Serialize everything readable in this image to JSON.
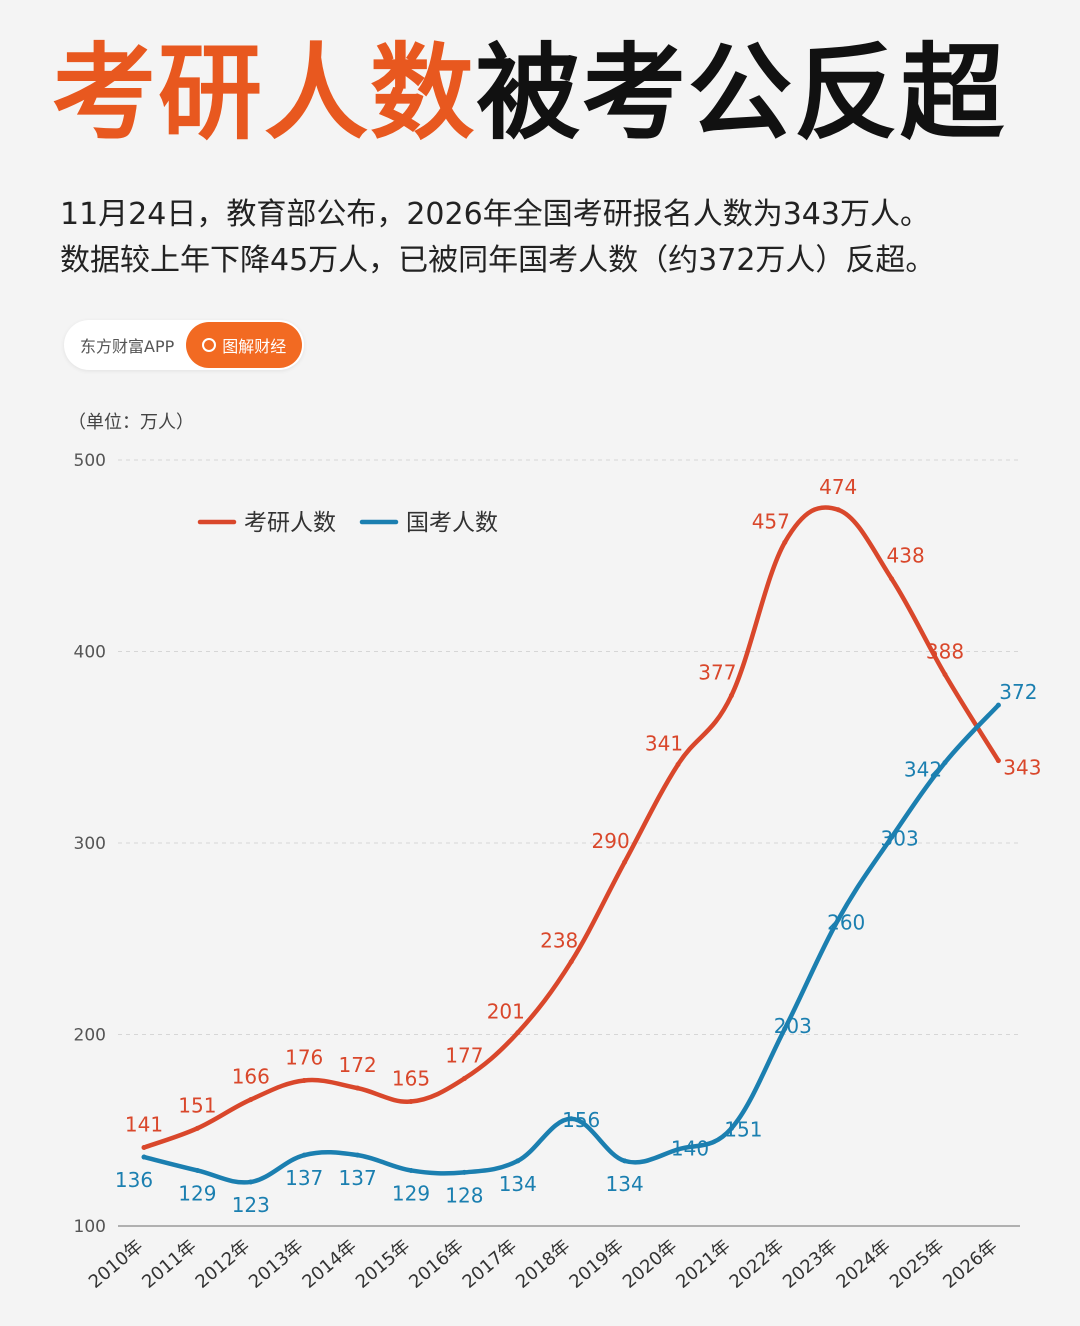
{
  "header": {
    "title_highlight": "考研人数",
    "title_rest": "被考公反超",
    "subtitle_line1": "11月24日，教育部公布，2026年全国考研报名人数为343万人。",
    "subtitle_line2": "数据较上年下降45万人，已被同年国考人数（约372万人）反超。"
  },
  "brand": {
    "app_name": "东方财富APP",
    "tag": "图解财经"
  },
  "chart_data": {
    "type": "line",
    "unit_label": "（单位：万人）",
    "categories": [
      "2010年",
      "2011年",
      "2012年",
      "2013年",
      "2014年",
      "2015年",
      "2016年",
      "2017年",
      "2018年",
      "2019年",
      "2020年",
      "2021年",
      "2022年",
      "2023年",
      "2024年",
      "2025年",
      "2026年"
    ],
    "ylim": [
      100,
      500
    ],
    "yticks": [
      100,
      200,
      300,
      400,
      500
    ],
    "grid": true,
    "legend_position": "top-left",
    "series": [
      {
        "name": "考研人数",
        "color": "#d9472b",
        "x": [
          "2010年",
          "2011年",
          "2012年",
          "2013年",
          "2014年",
          "2015年",
          "2016年",
          "2017年",
          "2018年",
          "2019年",
          "2020年",
          "2021年",
          "2022年",
          "2023年",
          "2024年",
          "2025年",
          "2026年"
        ],
        "values": [
          141,
          151,
          166,
          176,
          172,
          165,
          177,
          201,
          238,
          290,
          341,
          377,
          457,
          474,
          438,
          388,
          343
        ]
      },
      {
        "name": "国考人数",
        "color": "#1b7fb0",
        "x": [
          "2010年",
          "2011年",
          "2012年",
          "2013年",
          "2014年",
          "2015年",
          "2016年",
          "2017年",
          "2018年",
          "2019年",
          "2020年",
          "2021年",
          "2022年",
          "2023年",
          "2024年",
          "2025年",
          "2026年"
        ],
        "values": [
          136,
          129,
          123,
          137,
          137,
          129,
          128,
          134,
          156,
          134,
          140,
          151,
          203,
          260,
          303,
          342,
          372
        ]
      }
    ]
  }
}
